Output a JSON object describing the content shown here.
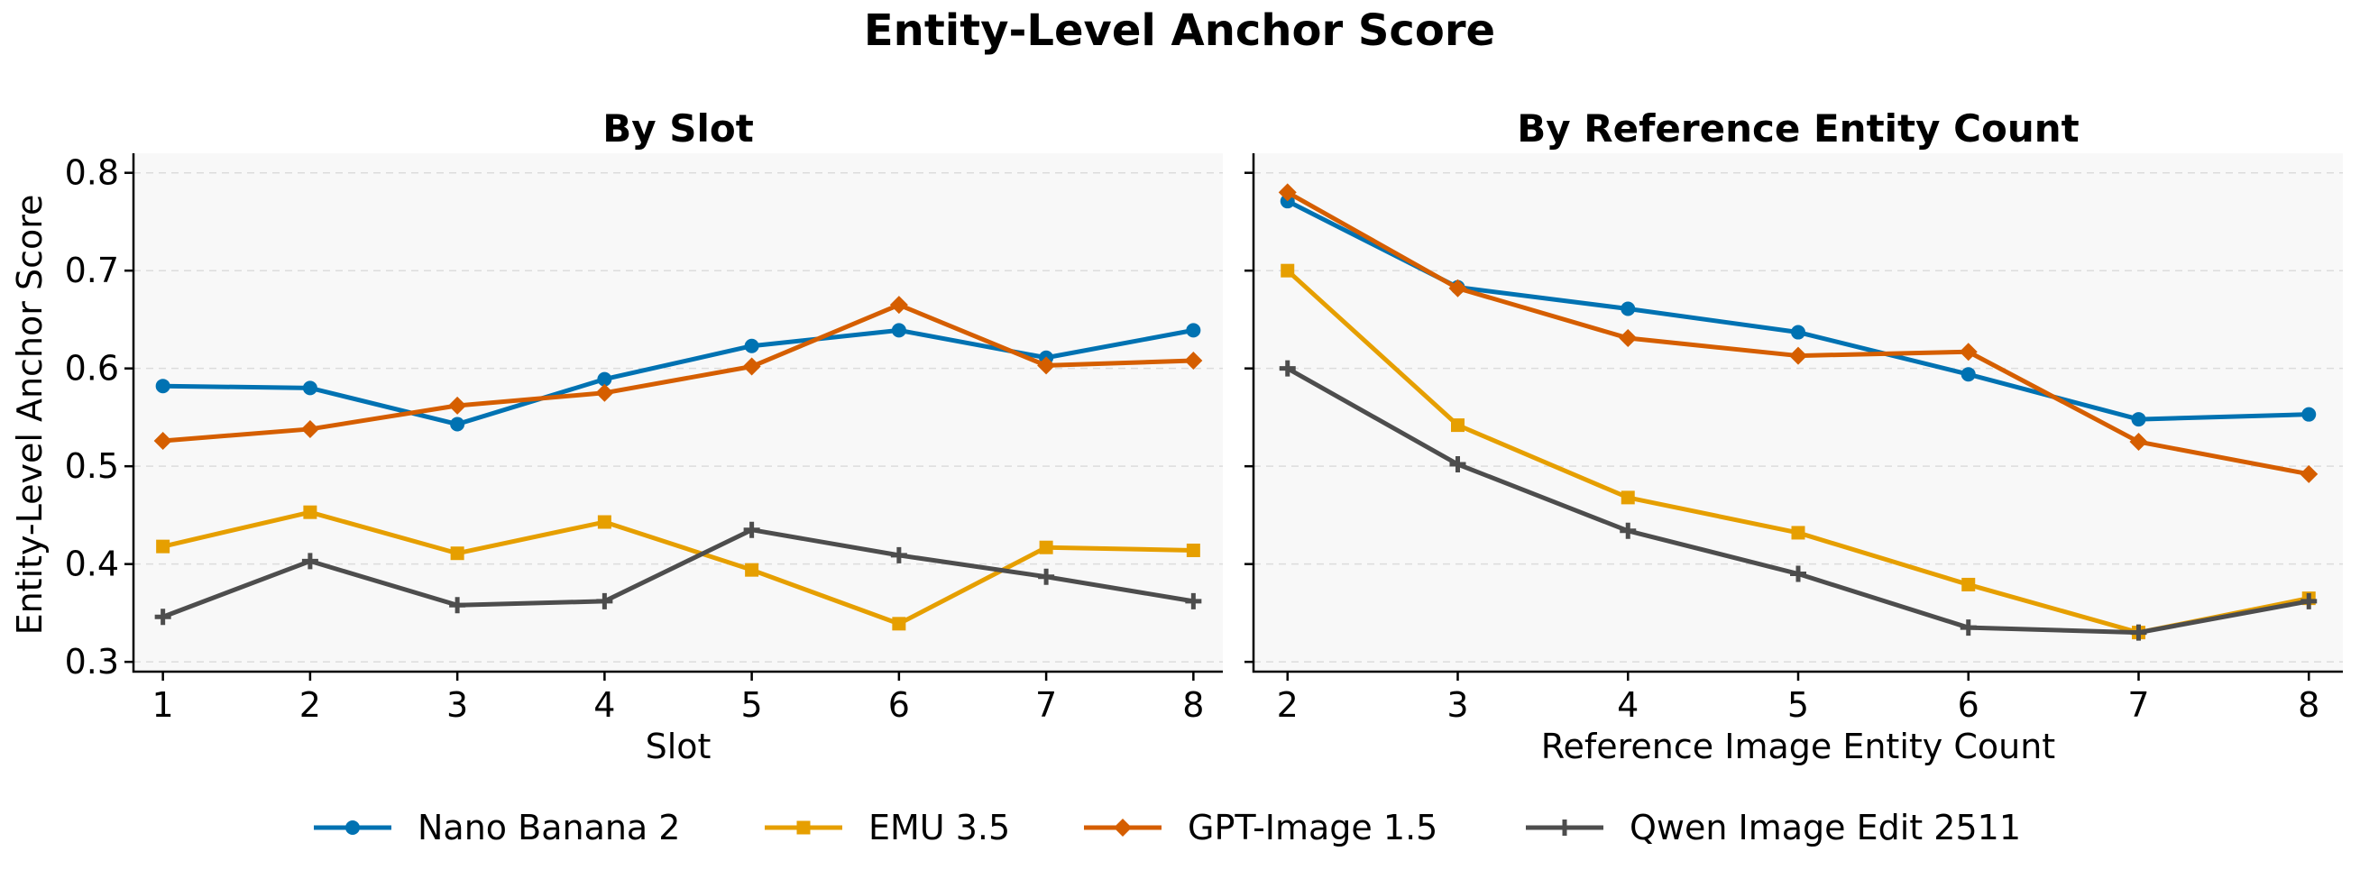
{
  "figure": {
    "title": "Entity-Level Anchor Score"
  },
  "legend": {
    "placement": "bottom-center"
  },
  "chart_data": [
    {
      "type": "line",
      "title": "By Slot",
      "xlabel": "Slot",
      "ylabel": "Entity-Level Anchor Score",
      "x": [
        1,
        2,
        3,
        4,
        5,
        6,
        7,
        8
      ],
      "xlim": [
        0.8,
        8.2
      ],
      "ylim": [
        0.29,
        0.82
      ],
      "yticks": [
        0.3,
        0.4,
        0.5,
        0.6,
        0.7,
        0.8
      ],
      "grid": "horizontal",
      "series": [
        {
          "name": "Nano Banana 2",
          "color": "#0072B2",
          "marker": "circle",
          "values": [
            0.582,
            0.58,
            0.543,
            0.589,
            0.623,
            0.639,
            0.611,
            0.639
          ]
        },
        {
          "name": "EMU 3.5",
          "color": "#E69F00",
          "marker": "square",
          "values": [
            0.418,
            0.453,
            0.411,
            0.443,
            0.394,
            0.339,
            0.417,
            0.414
          ]
        },
        {
          "name": "GPT-Image 1.5",
          "color": "#D55E00",
          "marker": "diamond",
          "values": [
            0.526,
            0.538,
            0.562,
            0.575,
            0.602,
            0.665,
            0.603,
            0.608
          ]
        },
        {
          "name": "Qwen Image Edit 2511",
          "color": "#4D4D4D",
          "marker": "plus",
          "values": [
            0.346,
            0.403,
            0.358,
            0.362,
            0.435,
            0.409,
            0.387,
            0.362
          ]
        }
      ]
    },
    {
      "type": "line",
      "title": "By Reference Entity Count",
      "xlabel": "Reference Image Entity Count",
      "ylabel": "",
      "x": [
        2,
        3,
        4,
        5,
        6,
        7,
        8
      ],
      "xlim": [
        1.8,
        8.2
      ],
      "ylim": [
        0.29,
        0.82
      ],
      "yticks": [
        0.3,
        0.4,
        0.5,
        0.6,
        0.7,
        0.8
      ],
      "grid": "horizontal",
      "series": [
        {
          "name": "Nano Banana 2",
          "color": "#0072B2",
          "marker": "circle",
          "values": [
            0.771,
            0.683,
            0.661,
            0.637,
            0.594,
            0.548,
            0.553
          ]
        },
        {
          "name": "EMU 3.5",
          "color": "#E69F00",
          "marker": "square",
          "values": [
            0.7,
            0.542,
            0.468,
            0.432,
            0.379,
            0.33,
            0.365
          ]
        },
        {
          "name": "GPT-Image 1.5",
          "color": "#D55E00",
          "marker": "diamond",
          "values": [
            0.78,
            0.682,
            0.631,
            0.613,
            0.617,
            0.525,
            0.492
          ]
        },
        {
          "name": "Qwen Image Edit 2511",
          "color": "#4D4D4D",
          "marker": "plus",
          "values": [
            0.6,
            0.502,
            0.434,
            0.39,
            0.335,
            0.33,
            0.362
          ]
        }
      ]
    }
  ]
}
